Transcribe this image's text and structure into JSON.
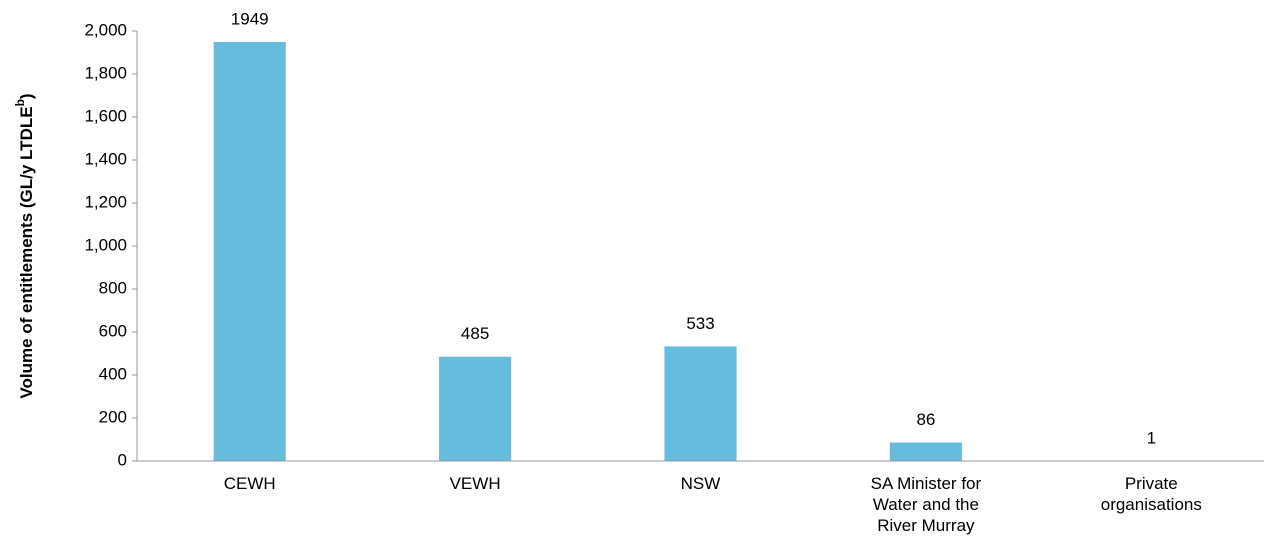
{
  "chart_data": {
    "type": "bar",
    "ylabel": [
      "Volume of entitlements (GL/y LTDLE",
      "b",
      ")"
    ],
    "categories": [
      [
        "CEWH"
      ],
      [
        "VEWH"
      ],
      [
        "NSW"
      ],
      [
        "SA Minister for",
        "Water and the",
        "River Murray"
      ],
      [
        "Private",
        "organisations"
      ]
    ],
    "values": [
      1949,
      485,
      533,
      86,
      1
    ],
    "color": "#66bcdc",
    "ylim": [
      0,
      2000
    ],
    "yticks": [
      0,
      200,
      400,
      600,
      800,
      {
        "value": 1000,
        "label": "1,000"
      },
      {
        "value": 1200,
        "label": "1,200"
      },
      {
        "value": 1400,
        "label": "1,400"
      },
      {
        "value": 1600,
        "label": "1,600"
      },
      {
        "value": 1800,
        "label": "1,800"
      },
      {
        "value": 2000,
        "label": "2,000"
      }
    ],
    "grid": false
  }
}
